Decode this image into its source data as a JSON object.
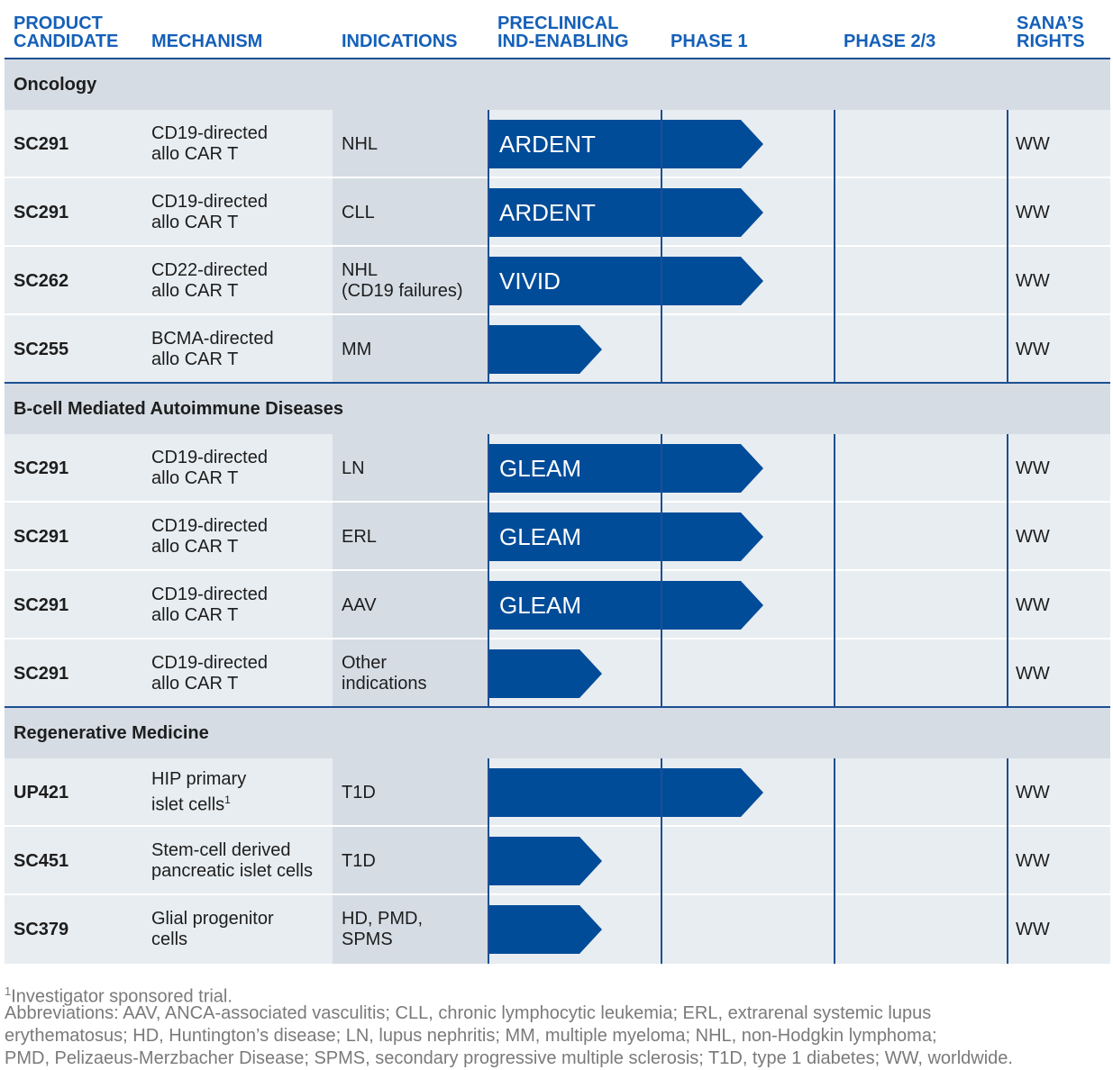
{
  "colors": {
    "header_text": "#1560b8",
    "bar_fill": "#004c99",
    "section_bg": "#d5dce4",
    "row_bg": "#e8edf1",
    "rule": "#1d4f91",
    "footnote_text": "#7a7a7a"
  },
  "headers": {
    "product": "PRODUCT\nCANDIDATE",
    "mechanism": "MECHANISM",
    "indications": "INDICATIONS",
    "preclinical": "PRECLINICAL\nIND-ENABLING",
    "phase1": "PHASE 1",
    "phase23": "PHASE 2/3",
    "rights": "SANA’S\nRIGHTS"
  },
  "sections": [
    {
      "title": "Oncology",
      "rows": [
        {
          "product": "SC291",
          "mechanism": "CD19-directed\nallo CAR T",
          "indication": "NHL",
          "bar_label": "ARDENT",
          "stage": "Phase 1",
          "rights": "WW"
        },
        {
          "product": "SC291",
          "mechanism": "CD19-directed\nallo CAR T",
          "indication": "CLL",
          "bar_label": "ARDENT",
          "stage": "Phase 1",
          "rights": "WW"
        },
        {
          "product": "SC262",
          "mechanism": "CD22-directed\nallo CAR T",
          "indication": "NHL\n(CD19 failures)",
          "bar_label": "VIVID",
          "stage": "Phase 1",
          "rights": "WW"
        },
        {
          "product": "SC255",
          "mechanism": "BCMA-directed\nallo CAR T",
          "indication": "MM",
          "bar_label": "",
          "stage": "Preclinical",
          "rights": "WW"
        }
      ]
    },
    {
      "title": "B-cell Mediated Autoimmune Diseases",
      "rows": [
        {
          "product": "SC291",
          "mechanism": "CD19-directed\nallo CAR T",
          "indication": "LN",
          "bar_label": "GLEAM",
          "stage": "Phase 1",
          "rights": "WW"
        },
        {
          "product": "SC291",
          "mechanism": "CD19-directed\nallo CAR T",
          "indication": "ERL",
          "bar_label": "GLEAM",
          "stage": "Phase 1",
          "rights": "WW"
        },
        {
          "product": "SC291",
          "mechanism": "CD19-directed\nallo CAR T",
          "indication": "AAV",
          "bar_label": "GLEAM",
          "stage": "Phase 1",
          "rights": "WW"
        },
        {
          "product": "SC291",
          "mechanism": "CD19-directed\nallo CAR T",
          "indication": "Other\nindications",
          "bar_label": "",
          "stage": "Preclinical",
          "rights": "WW"
        }
      ]
    },
    {
      "title": "Regenerative Medicine",
      "rows": [
        {
          "product": "UP421",
          "mechanism": "HIP primary\nislet cells",
          "mechanism_sup": "1",
          "indication": "T1D",
          "bar_label": "",
          "stage": "Phase 1",
          "rights": "WW"
        },
        {
          "product": "SC451",
          "mechanism": "Stem-cell derived\npancreatic islet cells",
          "indication": "T1D",
          "bar_label": "",
          "stage": "Preclinical",
          "rights": "WW"
        },
        {
          "product": "SC379",
          "mechanism": "Glial progenitor\ncells",
          "indication": "HD, PMD,\nSPMS",
          "bar_label": "",
          "stage": "Preclinical",
          "rights": "WW"
        }
      ]
    }
  ],
  "footnotes": {
    "note1_marker": "1",
    "note1": "Investigator sponsored trial.",
    "abbreviations": "Abbreviations: AAV, ANCA-associated vasculitis; CLL, chronic lymphocytic leukemia; ERL, extrarenal systemic lupus\nerythematosus; HD, Huntington’s disease; LN, lupus nephritis; MM, multiple myeloma; NHL, non-Hodgkin lymphoma;\nPMD, Pelizaeus-Merzbacher Disease; SPMS, secondary progressive multiple sclerosis; T1D, type 1 diabetes; WW, worldwide."
  }
}
